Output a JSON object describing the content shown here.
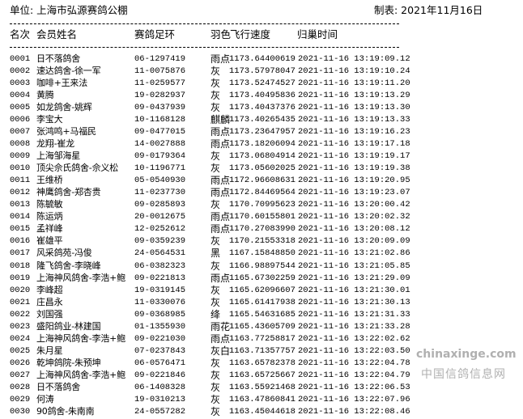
{
  "header": {
    "unit_label": "单位: 上海市弘源赛鸽公棚",
    "date_label": "制表: 2021年11月16日"
  },
  "columns": [
    "名次",
    "会员姓名",
    "赛鸽足环",
    "羽色",
    "飞行速度",
    "归巢时间"
  ],
  "rows": [
    [
      "0001",
      "日不落鸽舍",
      "06-1297419",
      "雨点",
      "1173.64400619",
      "2021-11-16 13:19:09.12"
    ],
    [
      "0002",
      "速达鸽舍-徐一军",
      "11-0075876",
      "灰",
      "1173.57978047",
      "2021-11-16 13:19:10.24"
    ],
    [
      "0003",
      "咖啡+王来法",
      "11-0259577",
      "灰",
      "1173.52474527",
      "2021-11-16 13:19:11.20"
    ],
    [
      "0004",
      "黄腾",
      "19-0282937",
      "灰",
      "1173.40495836",
      "2021-11-16 13:19:13.29"
    ],
    [
      "0005",
      "如龙鸽舍-姚辉",
      "09-0437939",
      "灰",
      "1173.40437376",
      "2021-11-16 13:19:13.30"
    ],
    [
      "0006",
      "李宝大",
      "10-1168128",
      "麒麟",
      "1173.40265435",
      "2021-11-16 13:19:13.33"
    ],
    [
      "0007",
      "张鸿鸣+马福民",
      "09-0477015",
      "雨点",
      "1173.23647957",
      "2021-11-16 13:19:16.23"
    ],
    [
      "0008",
      "龙翔-崔龙",
      "14-0027888",
      "雨点",
      "1173.18206094",
      "2021-11-16 13:19:17.18"
    ],
    [
      "0009",
      "上海邹海星",
      "09-0179364",
      "灰",
      "1173.06804914",
      "2021-11-16 13:19:19.17"
    ],
    [
      "0010",
      "顶尖佘氏鸽舍-佘义松",
      "10-1196771",
      "灰",
      "1173.05602025",
      "2021-11-16 13:19:19.38"
    ],
    [
      "0011",
      "王维桥",
      "05-0540930",
      "雨点",
      "1172.96608631",
      "2021-11-16 13:19:20.95"
    ],
    [
      "0012",
      "神鹰鸽舍-郑杏贵",
      "11-0237730",
      "雨点",
      "1172.84469564",
      "2021-11-16 13:19:23.07"
    ],
    [
      "0013",
      "陈毓敏",
      "09-0285893",
      "灰",
      "1170.70995623",
      "2021-11-16 13:20:00.42"
    ],
    [
      "0014",
      "陈运炳",
      "20-0012675",
      "雨点",
      "1170.60155801",
      "2021-11-16 13:20:02.32"
    ],
    [
      "0015",
      "孟祥峰",
      "12-0252612",
      "雨点",
      "1170.27083990",
      "2021-11-16 13:20:08.12"
    ],
    [
      "0016",
      "崔雄平",
      "09-0359239",
      "灰",
      "1170.21553318",
      "2021-11-16 13:20:09.09"
    ],
    [
      "0017",
      "风采鸽苑-冯俊",
      "24-0564531",
      "黑",
      "1167.15848850",
      "2021-11-16 13:21:02.86"
    ],
    [
      "0018",
      "隆飞鸽舍-李晓峰",
      "06-0382323",
      "灰",
      "1166.98897544",
      "2021-11-16 13:21:05.85"
    ],
    [
      "0019",
      "上海神风鸽舍-李浩+鲍",
      "09-0221813",
      "雨点",
      "1165.67302259",
      "2021-11-16 13:21:29.09"
    ],
    [
      "0020",
      "李峰超",
      "19-0319145",
      "灰",
      "1165.62096607",
      "2021-11-16 13:21:30.01"
    ],
    [
      "0021",
      "庄昌永",
      "11-0330076",
      "灰",
      "1165.61417938",
      "2021-11-16 13:21:30.13"
    ],
    [
      "0022",
      "刘国强",
      "09-0368985",
      "绛",
      "1165.54631685",
      "2021-11-16 13:21:31.33"
    ],
    [
      "0023",
      "盛阳鸽业-林建国",
      "01-1355930",
      "雨花",
      "1165.43605709",
      "2021-11-16 13:21:33.28"
    ],
    [
      "0024",
      "上海神风鸽舍-李浩+鲍",
      "09-0221030",
      "雨点",
      "1163.77258817",
      "2021-11-16 13:22:02.62"
    ],
    [
      "0025",
      "朱月星",
      "07-0237843",
      "灰白",
      "1163.71357757",
      "2021-11-16 13:22:03.50"
    ],
    [
      "0026",
      "乾坤鸽院-朱预坤",
      "06-0576471",
      "灰",
      "1163.65782378",
      "2021-11-16 13:22:04.78"
    ],
    [
      "0027",
      "上海神风鸽舍-李浩+鲍",
      "09-0221846",
      "灰",
      "1163.65725667",
      "2021-11-16 13:22:04.79"
    ],
    [
      "0028",
      "日不落鸽舍",
      "06-1408328",
      "灰",
      "1163.55921468",
      "2021-11-16 13:22:06.53"
    ],
    [
      "0029",
      "何涛",
      "19-0310213",
      "灰",
      "1163.47860841",
      "2021-11-16 13:22:07.96"
    ],
    [
      "0030",
      "90鸽舍-朱南南",
      "24-0557282",
      "灰",
      "1163.45044618",
      "2021-11-16 13:22:08.46"
    ]
  ],
  "watermark": {
    "latin": "chinaxinge.com",
    "cjk": "中国信鸽信息网",
    "color": "#969696"
  }
}
